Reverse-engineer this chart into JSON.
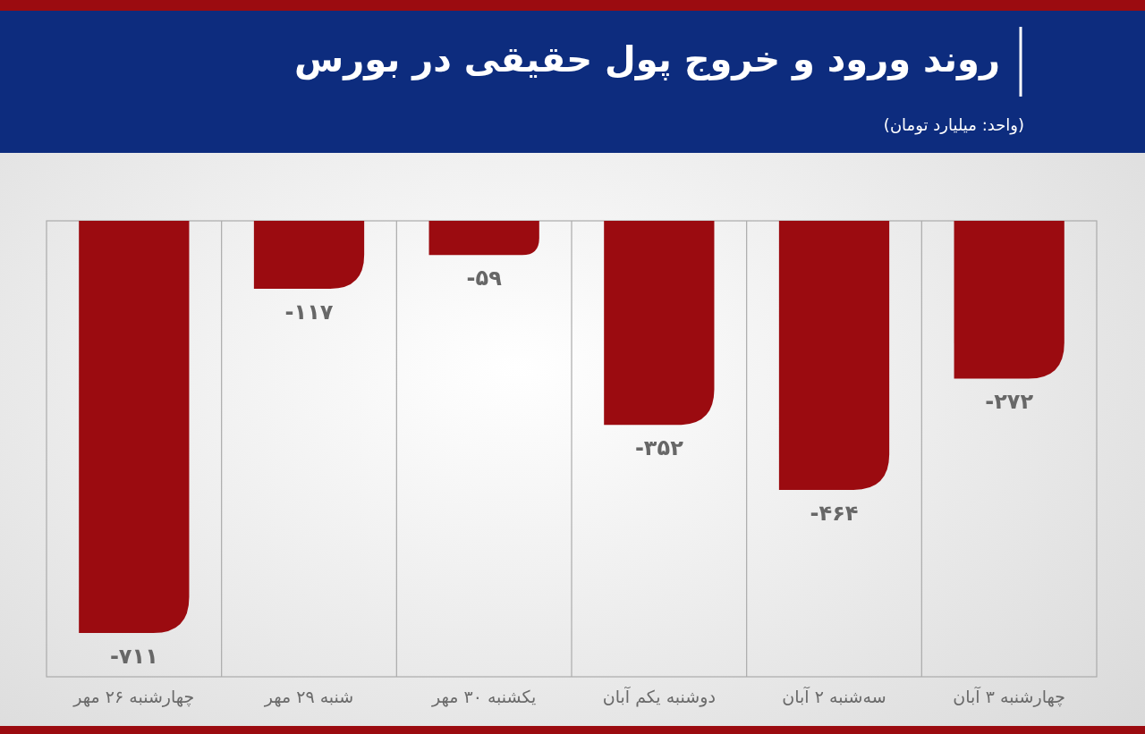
{
  "chart_data": {
    "type": "bar",
    "title": "روند ورود و خروج پول حقیقی در بورس",
    "subtitle": "(واحد: میلیارد تومان)",
    "categories": [
      "چهارشنبه ۲۶ مهر",
      "شنبه ۲۹ مهر",
      "یکشنبه ۳۰ مهر",
      "دوشنبه یکم آبان",
      "سه‌شنبه ۲ آبان",
      "چهارشنبه ۳ آبان"
    ],
    "values": [
      -711,
      -117,
      -59,
      -352,
      -464,
      -272
    ],
    "value_labels": [
      "-۷۱۱",
      "-۱۱۷",
      "-۵۹",
      "-۳۵۲",
      "-۴۶۴",
      "-۲۷۲"
    ],
    "color": "#9b0b10",
    "grid": "x"
  }
}
